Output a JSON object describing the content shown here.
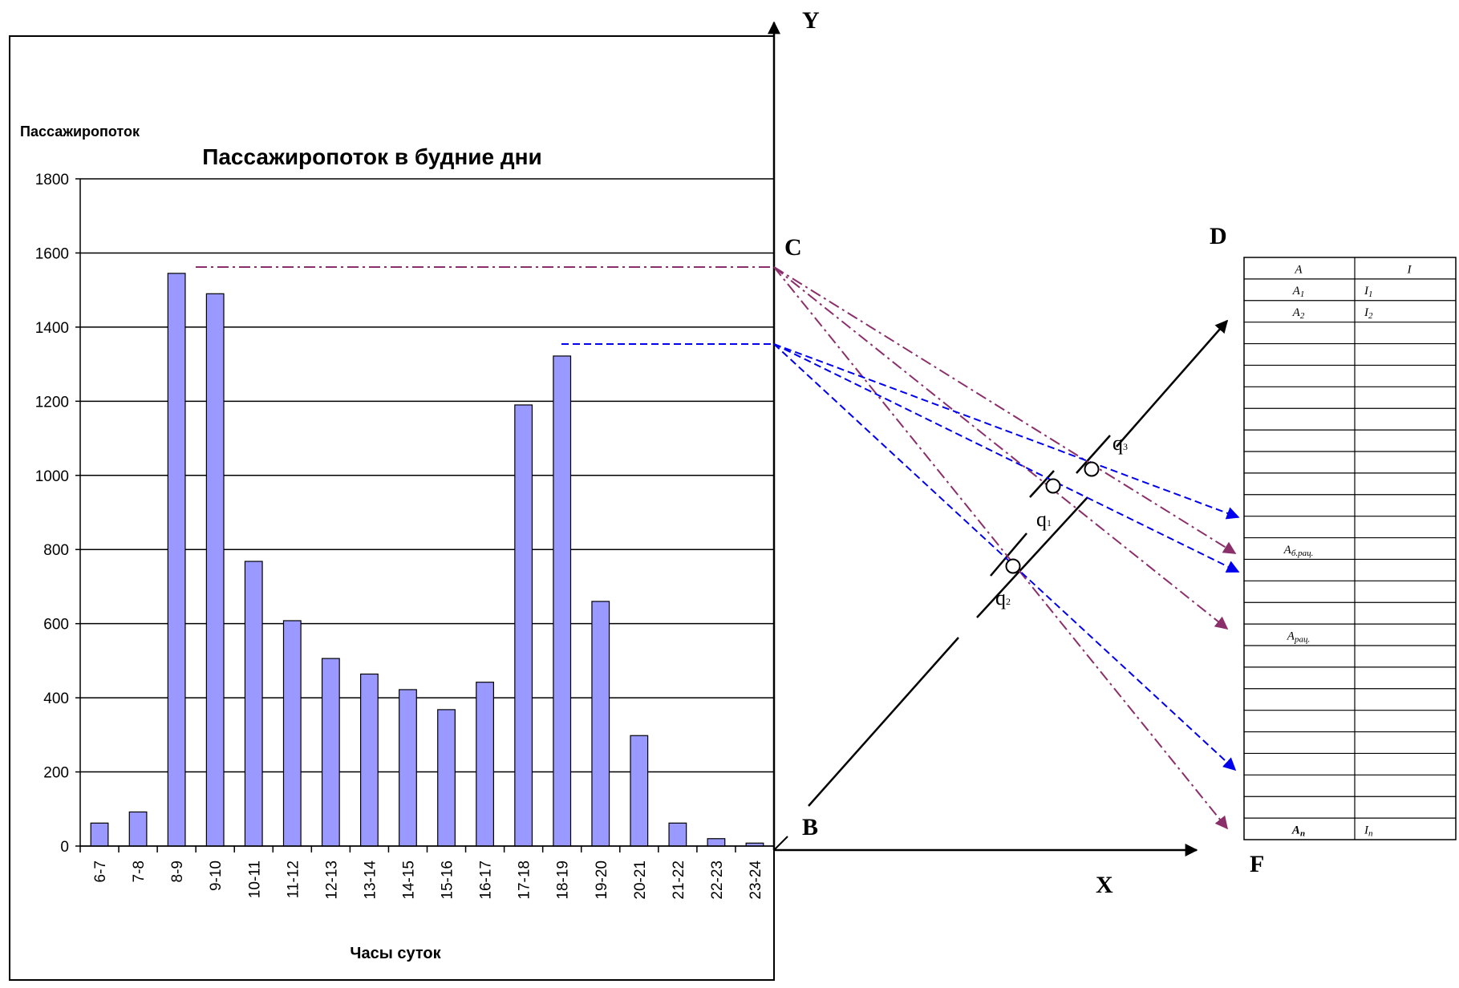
{
  "chart_data": {
    "type": "bar",
    "title": "Пассажиропоток в будние дни",
    "ylabel": "Пассажиропоток",
    "xlabel": "Часы суток",
    "ylim": [
      0,
      1800
    ],
    "yticks": [
      0,
      200,
      400,
      600,
      800,
      1000,
      1200,
      1400,
      1600,
      1800
    ],
    "categories": [
      "6-7",
      "7-8",
      "8-9",
      "9-10",
      "10-11",
      "11-12",
      "12-13",
      "13-14",
      "14-15",
      "15-16",
      "16-17",
      "17-18",
      "18-19",
      "19-20",
      "20-21",
      "21-22",
      "22-23",
      "23-24"
    ],
    "values": [
      62,
      92,
      1545,
      1490,
      768,
      608,
      506,
      464,
      422,
      368,
      442,
      1190,
      1322,
      660,
      298,
      62,
      20,
      8
    ],
    "grid": true,
    "reference_lines": [
      {
        "value": 1565,
        "style": "dash-dot",
        "color": "#8b2f6b"
      },
      {
        "value": 1357,
        "style": "dashed",
        "color": "#0000ee"
      }
    ]
  },
  "diagram": {
    "axis_labels": {
      "y": "Y",
      "x": "X",
      "c": "C",
      "d": "D",
      "b": "B",
      "f": "F"
    },
    "points": [
      {
        "base": "q",
        "sub": "3"
      },
      {
        "base": "q",
        "sub": "1"
      },
      {
        "base": "q",
        "sub": "2"
      }
    ],
    "colors": {
      "bar": "#9999ff",
      "purple": "#8b2f6b",
      "blue": "#0000ee"
    },
    "table": {
      "header": [
        "A",
        "I"
      ],
      "rows": [
        [
          "A1",
          "I1"
        ],
        [
          "A2",
          "I2"
        ],
        [
          "",
          ""
        ],
        [
          "",
          ""
        ],
        [
          "",
          ""
        ],
        [
          "",
          ""
        ],
        [
          "",
          ""
        ],
        [
          "",
          ""
        ],
        [
          "",
          ""
        ],
        [
          "",
          ""
        ],
        [
          "",
          ""
        ],
        [
          "",
          ""
        ],
        [
          "Aб.рац.",
          ""
        ],
        [
          "",
          ""
        ],
        [
          "",
          ""
        ],
        [
          "",
          ""
        ],
        [
          "Aрац.",
          ""
        ],
        [
          "",
          ""
        ],
        [
          "",
          ""
        ],
        [
          "",
          ""
        ],
        [
          "",
          ""
        ],
        [
          "",
          ""
        ],
        [
          "",
          ""
        ],
        [
          "",
          ""
        ],
        [
          "",
          ""
        ],
        [
          "An",
          "In"
        ]
      ]
    }
  }
}
